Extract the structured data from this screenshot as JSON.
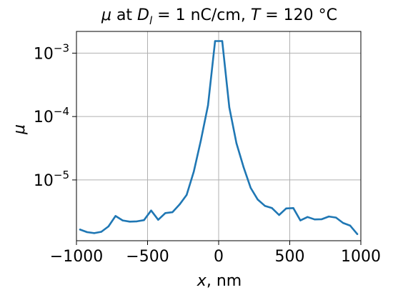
{
  "chart_data": {
    "type": "line",
    "title": "μ at D_l = 1 nC/cm, T = 120 °C",
    "title_parts": {
      "mu": "μ",
      "at": " at ",
      "d": "D",
      "d_sub": "l",
      "mid": " = 1 nC/cm, ",
      "t": "T",
      "end": " = 120 °C"
    },
    "xlabel": "x, nm",
    "xlabel_parts": {
      "var": "x",
      "rest": ", nm"
    },
    "ylabel": "μ",
    "x_scale": "linear",
    "y_scale": "log",
    "xlim": [
      -1000,
      1000
    ],
    "ylim": [
      1.1e-06,
      0.0022
    ],
    "grid": true,
    "x_ticks": [
      {
        "value": -1000,
        "label": "−1000"
      },
      {
        "value": -500,
        "label": "−500"
      },
      {
        "value": 0,
        "label": "0"
      },
      {
        "value": 500,
        "label": "500"
      },
      {
        "value": 1000,
        "label": "1000"
      }
    ],
    "y_ticks": [
      {
        "value": 1e-05,
        "base": "10",
        "exp": "−5"
      },
      {
        "value": 0.0001,
        "base": "10",
        "exp": "−4"
      },
      {
        "value": 0.001,
        "base": "10",
        "exp": "−3"
      }
    ],
    "color": "#1f77b4",
    "series": [
      {
        "x": [
          -975,
          -925,
          -875,
          -825,
          -775,
          -725,
          -675,
          -625,
          -575,
          -525,
          -475,
          -425,
          -375,
          -325,
          -275,
          -225,
          -175,
          -125,
          -75,
          -25,
          25,
          75,
          125,
          175,
          225,
          275,
          325,
          375,
          425,
          475,
          525,
          575,
          625,
          675,
          725,
          775,
          825,
          875,
          925,
          975
        ],
        "y": [
          1.65e-06,
          1.5e-06,
          1.45e-06,
          1.52e-06,
          1.85e-06,
          2.7e-06,
          2.3e-06,
          2.2e-06,
          2.22e-06,
          2.32e-06,
          3.3e-06,
          2.35e-06,
          3e-06,
          3.1e-06,
          4.1e-06,
          5.8e-06,
          1.35e-05,
          4.2e-05,
          0.00015,
          0.00155,
          0.00155,
          0.00014,
          3.8e-05,
          1.6e-05,
          7.5e-06,
          4.9e-06,
          3.9e-06,
          3.6e-06,
          2.8e-06,
          3.55e-06,
          3.6e-06,
          2.3e-06,
          2.6e-06,
          2.38e-06,
          2.4e-06,
          2.65e-06,
          2.55e-06,
          2.1e-06,
          1.9e-06,
          1.4e-06
        ]
      }
    ]
  }
}
